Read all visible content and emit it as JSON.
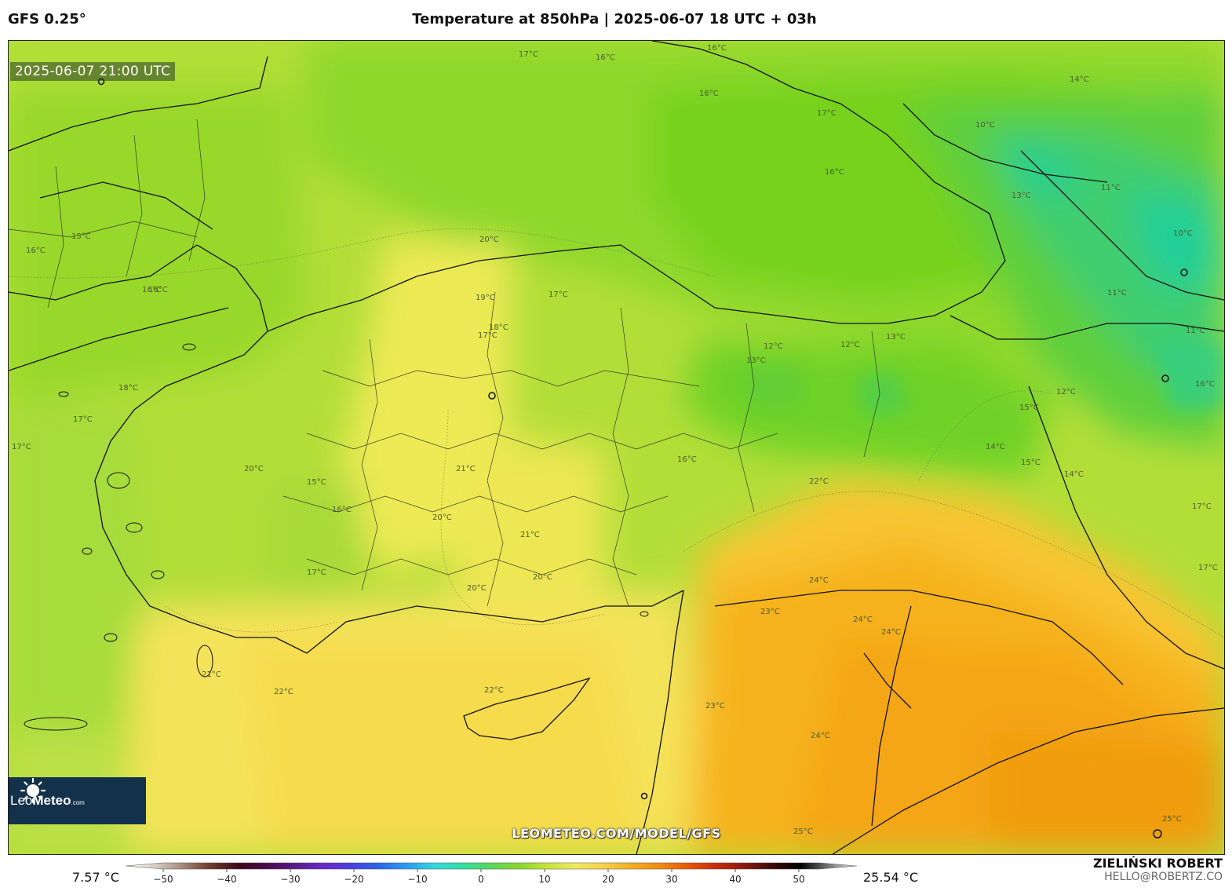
{
  "header": {
    "model": "GFS 0.25°",
    "title": "Temperature at 850hPa | 2025-06-07 18 UTC + 03h"
  },
  "map": {
    "timestamp": "2025-06-07 21:00 UTC",
    "watermark": "LEOMETEO.COM/MODEL/GFS",
    "logo": {
      "brand_light": "Leo",
      "brand_bold": "Meteo",
      "suffix": ".com"
    },
    "contour_labels": [
      "17°C",
      "16°C",
      "16°C",
      "17°C",
      "16°C",
      "14°C",
      "10°C",
      "16°C",
      "13°C",
      "11°C",
      "10°C",
      "15°C",
      "16°C",
      "16°C",
      "20°C",
      "19°C",
      "17°C",
      "18°C",
      "17°C",
      "18°C",
      "17°C",
      "17°C",
      "12°C",
      "13°C",
      "12°C",
      "13°C",
      "12°C",
      "15°C",
      "14°C",
      "15°C",
      "14°C",
      "17°C",
      "17°C",
      "16°C",
      "16°C",
      "20°C",
      "15°C",
      "16°C",
      "21°C",
      "20°C",
      "21°C",
      "17°C",
      "20°C",
      "20°C",
      "22°C",
      "24°C",
      "24°C",
      "24°C",
      "22°C",
      "22°C",
      "23°C",
      "24°C",
      "25°C",
      "25°C",
      "21°C",
      "23°C",
      "16°C",
      "11°C",
      "11°C"
    ]
  },
  "colorbar": {
    "min_label": "7.57 °C",
    "max_label": "25.54 °C",
    "ticks": [
      "−50",
      "−40",
      "−30",
      "−20",
      "−10",
      "0",
      "10",
      "20",
      "30",
      "40",
      "50"
    ],
    "colors": [
      "#ffffff",
      "#d9d0c9",
      "#a88b7c",
      "#6e3a2b",
      "#3d0a1a",
      "#4a0a4a",
      "#5a1a8a",
      "#6a28c8",
      "#4a3fe0",
      "#2a66e8",
      "#2a9ef0",
      "#30d8e0",
      "#2ee0a0",
      "#58d85a",
      "#8ad62a",
      "#c8e43a",
      "#f0ea60",
      "#f6d046",
      "#f4ad1c",
      "#f08a10",
      "#e85808",
      "#c82a08",
      "#8a1a10",
      "#3a0a0a",
      "#000000",
      "#777777",
      "#e8e8e8"
    ]
  },
  "author": {
    "name": "ZIELIŃSKI ROBERT",
    "email": "HELLO@ROBERTZ.CO"
  }
}
